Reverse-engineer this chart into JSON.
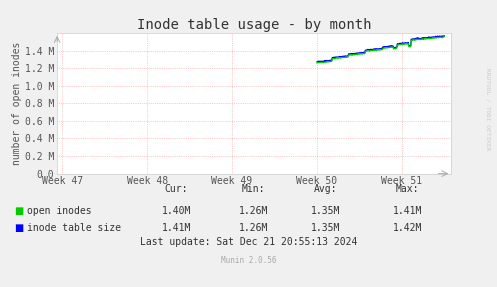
{
  "title": "Inode table usage - by month",
  "ylabel": "number of open inodes",
  "background_color": "#f0f0f0",
  "plot_bg_color": "#ffffff",
  "grid_color": "#ff9999",
  "grid_style": ":",
  "ylim": [
    0,
    1600000
  ],
  "yticks": [
    0,
    200000,
    400000,
    600000,
    800000,
    1000000,
    1200000,
    1400000
  ],
  "ytick_labels": [
    "0.0",
    "0.2 M",
    "0.4 M",
    "0.6 M",
    "0.8 M",
    "1.0 M",
    "1.2 M",
    "1.4 M"
  ],
  "week_labels": [
    "Week 47",
    "Week 48",
    "Week 49",
    "Week 50",
    "Week 51"
  ],
  "week_positions": [
    0,
    168,
    336,
    504,
    672
  ],
  "xlim": [
    -10,
    770
  ],
  "open_inodes_color": "#00cc00",
  "inode_table_color": "#0000ff",
  "legend_entries": [
    "open inodes",
    "inode table size"
  ],
  "stats_header": [
    "Cur:",
    "Min:",
    "Avg:",
    "Max:"
  ],
  "stats_open": [
    "1.40M",
    "1.26M",
    "1.35M",
    "1.41M"
  ],
  "stats_table": [
    "1.41M",
    "1.26M",
    "1.35M",
    "1.42M"
  ],
  "last_update": "Last update: Sat Dec 21 20:55:13 2024",
  "munin_version": "Munin 2.0.56",
  "rrdtool_text": "RRDTOOL / TOBI OETIKER",
  "title_fontsize": 10,
  "axis_fontsize": 7,
  "tick_fontsize": 7,
  "legend_fontsize": 7,
  "stats_fontsize": 7
}
